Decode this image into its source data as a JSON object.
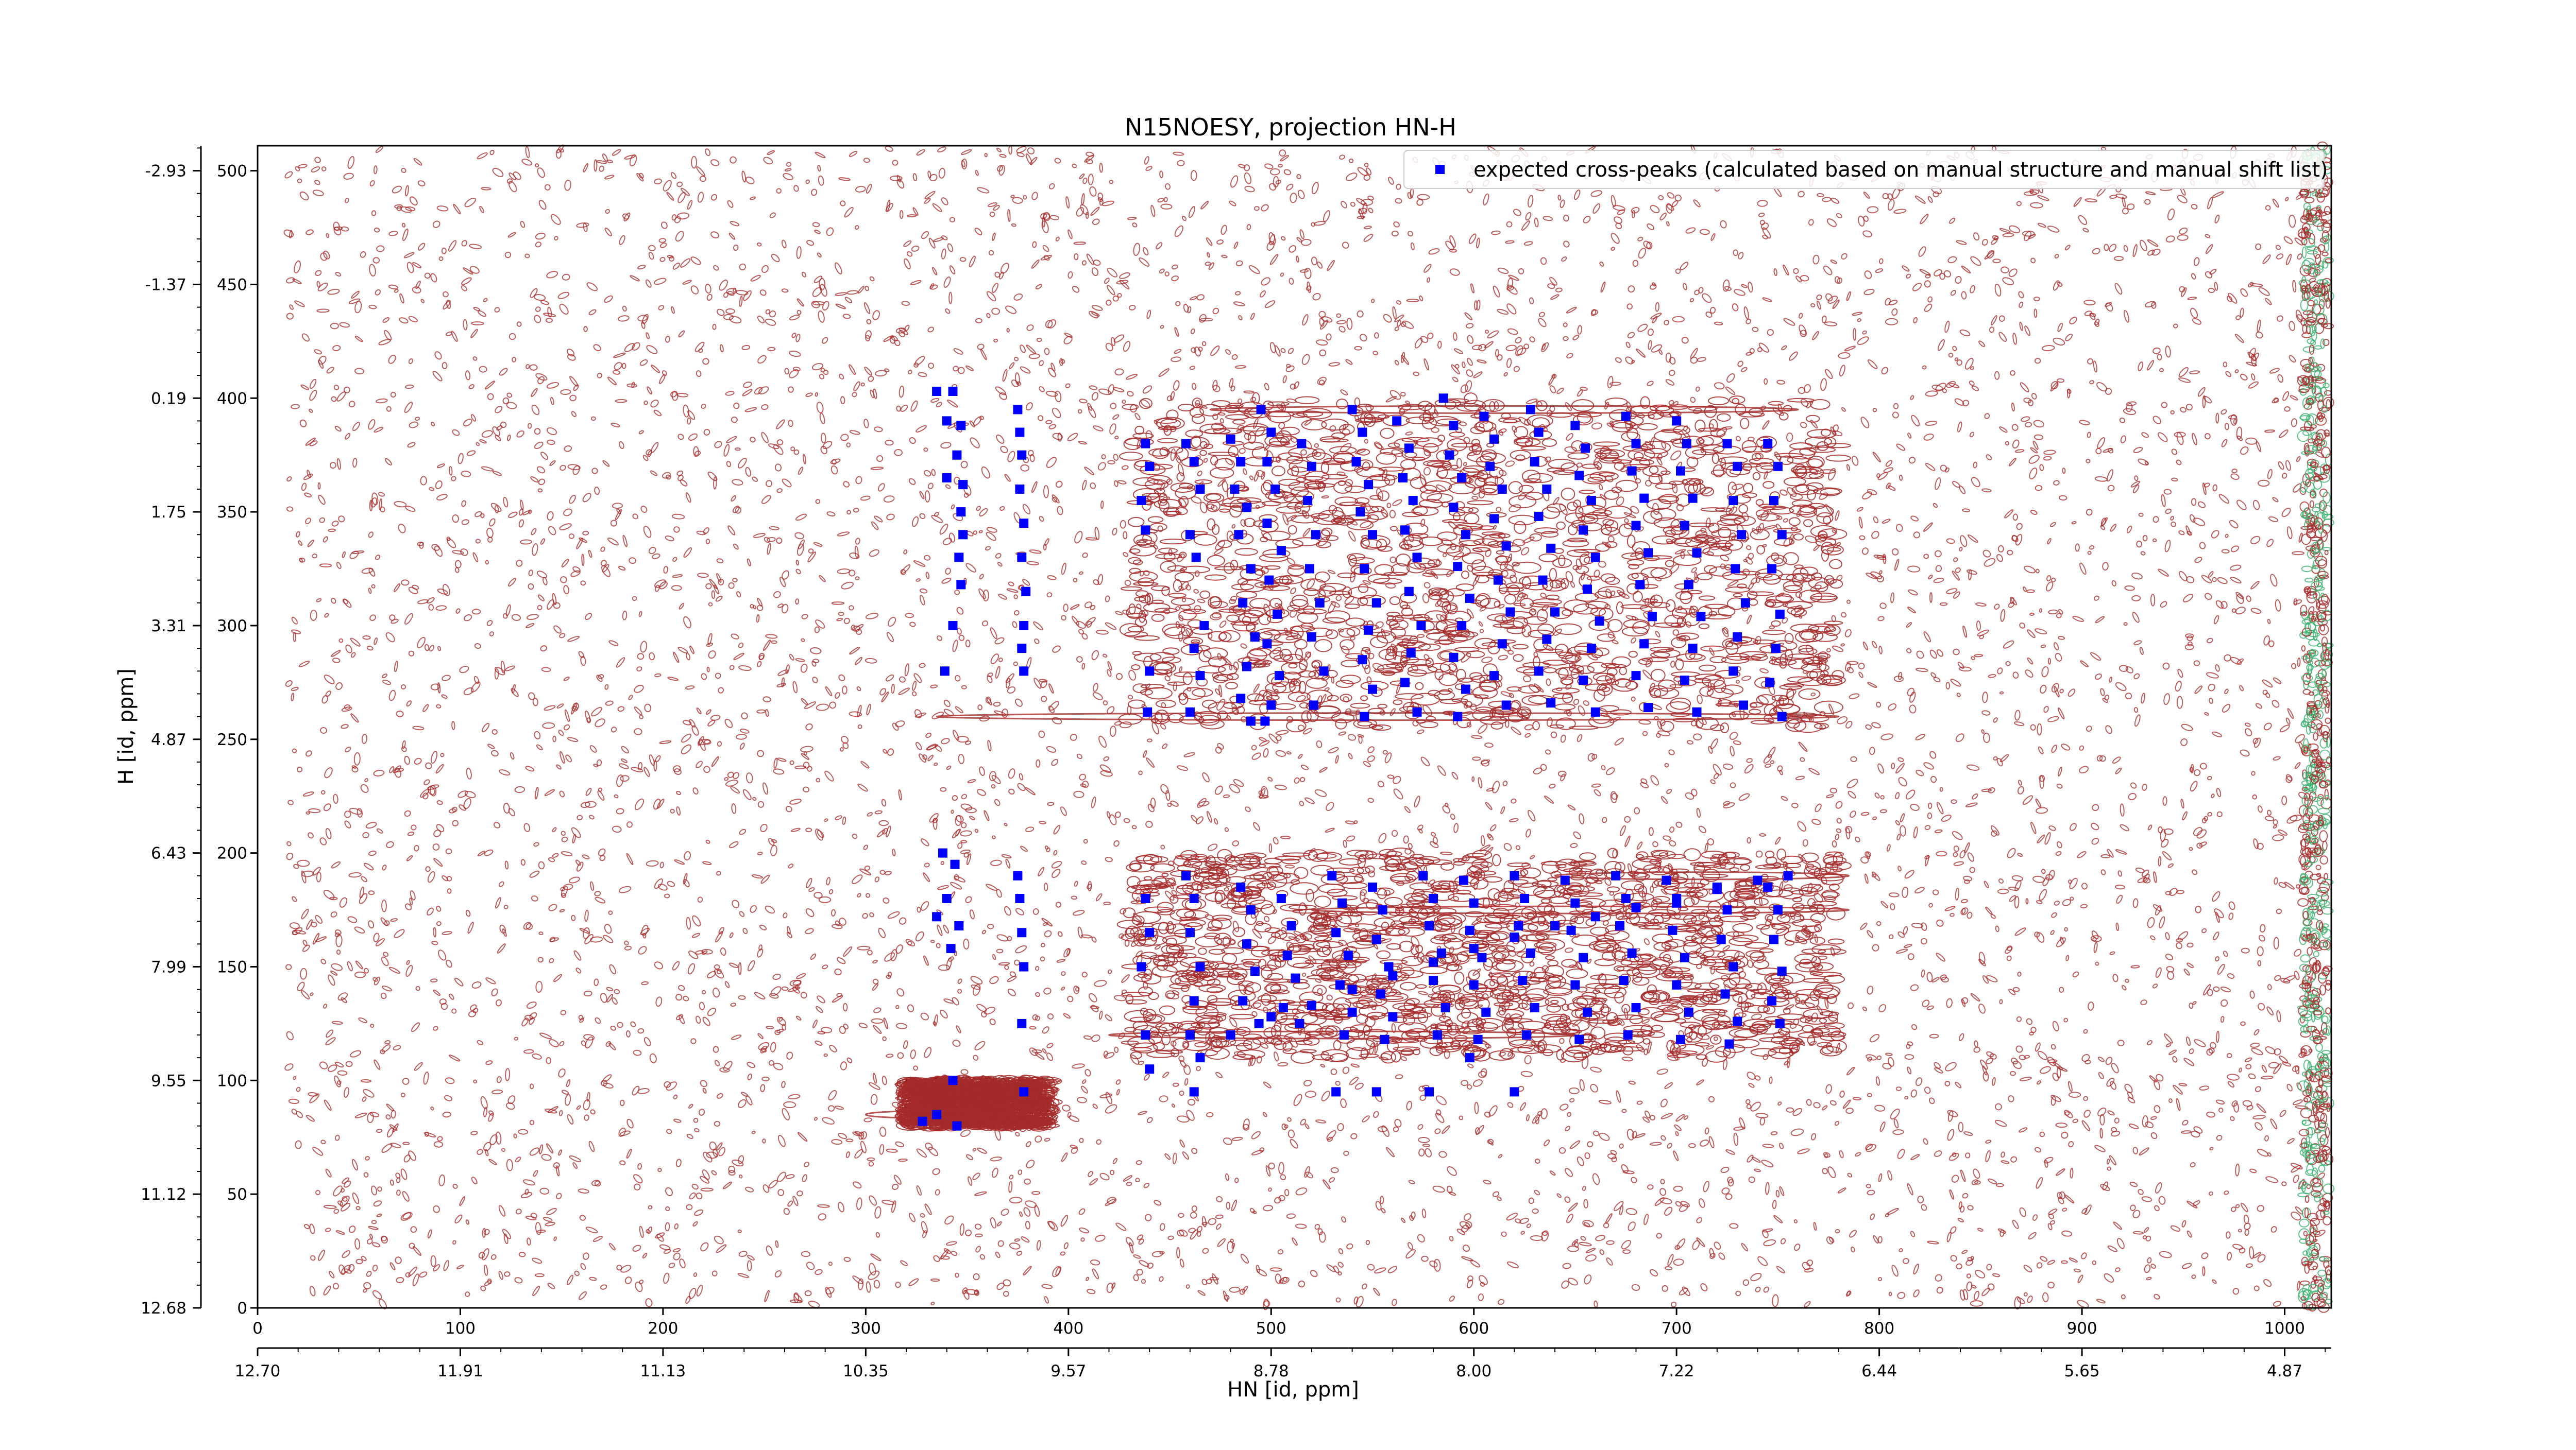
{
  "chart_data": {
    "type": "scatter",
    "title": "N15NOESY, projection HN-H",
    "xlabel": "HN [id, ppm]",
    "ylabel": "H [id, ppm]",
    "xlim": [
      0,
      1023
    ],
    "ylim": [
      0,
      511
    ],
    "x_index_ticks": [
      "0",
      "100",
      "200",
      "300",
      "400",
      "500",
      "600",
      "700",
      "800",
      "900",
      "1000"
    ],
    "y_index_ticks": [
      "0",
      "50",
      "100",
      "150",
      "200",
      "250",
      "300",
      "350",
      "400",
      "450",
      "500"
    ],
    "x_ppm_ticks": [
      "12.70",
      "11.91",
      "11.13",
      "10.35",
      "9.57",
      "8.78",
      "8.00",
      "7.22",
      "6.44",
      "5.65",
      "4.87"
    ],
    "y_ppm_ticks": [
      "12.68",
      "11.12",
      "9.55",
      "7.99",
      "6.43",
      "4.87",
      "3.31",
      "1.75",
      "0.19",
      "-1.37",
      "-2.93"
    ],
    "legend": {
      "label": "expected cross-peaks (calculated based on manual structure and manual shift list)",
      "position": "top-right",
      "marker_color": "#0000ff"
    },
    "colors": {
      "contour": "#a52a2a",
      "contour_negative": "#3cb371",
      "marker": "#0000ff"
    },
    "series": [
      {
        "name": "expected cross-peaks (calculated based on manual structure and manual shift list)",
        "points": [
          [
            335,
            403
          ],
          [
            343,
            403
          ],
          [
            340,
            390
          ],
          [
            347,
            388
          ],
          [
            345,
            375
          ],
          [
            340,
            365
          ],
          [
            348,
            362
          ],
          [
            347,
            350
          ],
          [
            348,
            340
          ],
          [
            346,
            330
          ],
          [
            347,
            318
          ],
          [
            343,
            300
          ],
          [
            339,
            280
          ],
          [
            375,
            395
          ],
          [
            376,
            385
          ],
          [
            377,
            375
          ],
          [
            376,
            360
          ],
          [
            378,
            345
          ],
          [
            377,
            330
          ],
          [
            379,
            315
          ],
          [
            378,
            300
          ],
          [
            377,
            290
          ],
          [
            378,
            280
          ],
          [
            438,
            380
          ],
          [
            440,
            370
          ],
          [
            436,
            355
          ],
          [
            438,
            342
          ],
          [
            440,
            280
          ],
          [
            439,
            262
          ],
          [
            458,
            380
          ],
          [
            462,
            372
          ],
          [
            465,
            360
          ],
          [
            460,
            340
          ],
          [
            463,
            330
          ],
          [
            467,
            300
          ],
          [
            462,
            290
          ],
          [
            465,
            278
          ],
          [
            460,
            262
          ],
          [
            480,
            382
          ],
          [
            485,
            372
          ],
          [
            482,
            360
          ],
          [
            488,
            352
          ],
          [
            484,
            340
          ],
          [
            490,
            325
          ],
          [
            486,
            310
          ],
          [
            492,
            295
          ],
          [
            488,
            282
          ],
          [
            485,
            268
          ],
          [
            490,
            258
          ],
          [
            495,
            395
          ],
          [
            500,
            385
          ],
          [
            498,
            372
          ],
          [
            502,
            360
          ],
          [
            498,
            345
          ],
          [
            505,
            333
          ],
          [
            499,
            320
          ],
          [
            503,
            305
          ],
          [
            498,
            292
          ],
          [
            504,
            278
          ],
          [
            500,
            265
          ],
          [
            497,
            258
          ],
          [
            515,
            380
          ],
          [
            520,
            370
          ],
          [
            518,
            355
          ],
          [
            522,
            340
          ],
          [
            519,
            325
          ],
          [
            524,
            310
          ],
          [
            520,
            295
          ],
          [
            526,
            280
          ],
          [
            521,
            265
          ],
          [
            540,
            395
          ],
          [
            545,
            385
          ],
          [
            542,
            372
          ],
          [
            548,
            362
          ],
          [
            544,
            350
          ],
          [
            550,
            340
          ],
          [
            546,
            325
          ],
          [
            552,
            310
          ],
          [
            548,
            298
          ],
          [
            545,
            285
          ],
          [
            550,
            272
          ],
          [
            546,
            260
          ],
          [
            562,
            390
          ],
          [
            568,
            378
          ],
          [
            565,
            365
          ],
          [
            570,
            355
          ],
          [
            566,
            342
          ],
          [
            572,
            330
          ],
          [
            568,
            315
          ],
          [
            574,
            300
          ],
          [
            569,
            288
          ],
          [
            566,
            275
          ],
          [
            572,
            262
          ],
          [
            585,
            400
          ],
          [
            590,
            388
          ],
          [
            588,
            375
          ],
          [
            594,
            365
          ],
          [
            590,
            352
          ],
          [
            596,
            340
          ],
          [
            592,
            326
          ],
          [
            598,
            312
          ],
          [
            594,
            300
          ],
          [
            590,
            286
          ],
          [
            596,
            272
          ],
          [
            592,
            260
          ],
          [
            605,
            392
          ],
          [
            610,
            382
          ],
          [
            608,
            370
          ],
          [
            614,
            360
          ],
          [
            610,
            347
          ],
          [
            616,
            335
          ],
          [
            612,
            320
          ],
          [
            618,
            306
          ],
          [
            614,
            292
          ],
          [
            610,
            278
          ],
          [
            616,
            265
          ],
          [
            628,
            395
          ],
          [
            632,
            385
          ],
          [
            630,
            372
          ],
          [
            636,
            360
          ],
          [
            632,
            348
          ],
          [
            638,
            334
          ],
          [
            634,
            320
          ],
          [
            640,
            306
          ],
          [
            636,
            294
          ],
          [
            632,
            280
          ],
          [
            638,
            266
          ],
          [
            650,
            388
          ],
          [
            655,
            378
          ],
          [
            652,
            366
          ],
          [
            658,
            355
          ],
          [
            654,
            342
          ],
          [
            660,
            330
          ],
          [
            656,
            316
          ],
          [
            662,
            302
          ],
          [
            658,
            290
          ],
          [
            654,
            276
          ],
          [
            660,
            262
          ],
          [
            675,
            392
          ],
          [
            680,
            380
          ],
          [
            678,
            368
          ],
          [
            684,
            356
          ],
          [
            680,
            344
          ],
          [
            686,
            332
          ],
          [
            682,
            318
          ],
          [
            688,
            304
          ],
          [
            684,
            292
          ],
          [
            680,
            278
          ],
          [
            686,
            264
          ],
          [
            700,
            390
          ],
          [
            705,
            380
          ],
          [
            702,
            368
          ],
          [
            708,
            356
          ],
          [
            704,
            344
          ],
          [
            710,
            332
          ],
          [
            706,
            318
          ],
          [
            712,
            304
          ],
          [
            708,
            290
          ],
          [
            704,
            276
          ],
          [
            710,
            262
          ],
          [
            725,
            380
          ],
          [
            730,
            370
          ],
          [
            728,
            355
          ],
          [
            732,
            340
          ],
          [
            729,
            325
          ],
          [
            734,
            310
          ],
          [
            730,
            295
          ],
          [
            728,
            280
          ],
          [
            733,
            265
          ],
          [
            745,
            380
          ],
          [
            750,
            370
          ],
          [
            748,
            355
          ],
          [
            752,
            340
          ],
          [
            747,
            325
          ],
          [
            751,
            305
          ],
          [
            749,
            290
          ],
          [
            746,
            275
          ],
          [
            752,
            260
          ],
          [
            338,
            200
          ],
          [
            344,
            195
          ],
          [
            340,
            180
          ],
          [
            335,
            172
          ],
          [
            346,
            168
          ],
          [
            342,
            158
          ],
          [
            343,
            100
          ],
          [
            335,
            85
          ],
          [
            345,
            80
          ],
          [
            328,
            82
          ],
          [
            375,
            190
          ],
          [
            376,
            180
          ],
          [
            377,
            165
          ],
          [
            378,
            150
          ],
          [
            377,
            125
          ],
          [
            378,
            95
          ],
          [
            438,
            180
          ],
          [
            440,
            165
          ],
          [
            436,
            150
          ],
          [
            438,
            120
          ],
          [
            440,
            105
          ],
          [
            458,
            190
          ],
          [
            462,
            180
          ],
          [
            460,
            165
          ],
          [
            465,
            150
          ],
          [
            462,
            135
          ],
          [
            460,
            120
          ],
          [
            465,
            110
          ],
          [
            462,
            95
          ],
          [
            485,
            185
          ],
          [
            490,
            175
          ],
          [
            488,
            160
          ],
          [
            492,
            148
          ],
          [
            486,
            135
          ],
          [
            494,
            125
          ],
          [
            505,
            180
          ],
          [
            510,
            168
          ],
          [
            508,
            155
          ],
          [
            512,
            145
          ],
          [
            506,
            132
          ],
          [
            514,
            125
          ],
          [
            530,
            190
          ],
          [
            535,
            178
          ],
          [
            532,
            165
          ],
          [
            538,
            155
          ],
          [
            534,
            142
          ],
          [
            540,
            130
          ],
          [
            536,
            120
          ],
          [
            532,
            95
          ],
          [
            550,
            185
          ],
          [
            555,
            175
          ],
          [
            552,
            162
          ],
          [
            558,
            150
          ],
          [
            554,
            138
          ],
          [
            560,
            128
          ],
          [
            556,
            118
          ],
          [
            552,
            95
          ],
          [
            575,
            190
          ],
          [
            580,
            180
          ],
          [
            578,
            168
          ],
          [
            584,
            156
          ],
          [
            580,
            144
          ],
          [
            586,
            132
          ],
          [
            582,
            120
          ],
          [
            578,
            95
          ],
          [
            595,
            188
          ],
          [
            600,
            178
          ],
          [
            598,
            166
          ],
          [
            604,
            154
          ],
          [
            600,
            142
          ],
          [
            606,
            130
          ],
          [
            602,
            118
          ],
          [
            598,
            110
          ],
          [
            620,
            190
          ],
          [
            625,
            180
          ],
          [
            622,
            168
          ],
          [
            628,
            156
          ],
          [
            624,
            144
          ],
          [
            630,
            132
          ],
          [
            626,
            120
          ],
          [
            620,
            95
          ],
          [
            645,
            188
          ],
          [
            650,
            178
          ],
          [
            648,
            166
          ],
          [
            654,
            154
          ],
          [
            650,
            142
          ],
          [
            656,
            130
          ],
          [
            652,
            118
          ],
          [
            670,
            190
          ],
          [
            675,
            180
          ],
          [
            672,
            168
          ],
          [
            678,
            156
          ],
          [
            674,
            144
          ],
          [
            680,
            132
          ],
          [
            676,
            120
          ],
          [
            695,
            188
          ],
          [
            700,
            178
          ],
          [
            698,
            166
          ],
          [
            704,
            154
          ],
          [
            700,
            142
          ],
          [
            706,
            130
          ],
          [
            702,
            118
          ],
          [
            720,
            185
          ],
          [
            725,
            175
          ],
          [
            722,
            162
          ],
          [
            728,
            150
          ],
          [
            724,
            138
          ],
          [
            730,
            126
          ],
          [
            726,
            116
          ],
          [
            745,
            185
          ],
          [
            750,
            175
          ],
          [
            748,
            162
          ],
          [
            752,
            148
          ],
          [
            747,
            135
          ],
          [
            751,
            125
          ],
          [
            480,
            120
          ],
          [
            500,
            128
          ],
          [
            520,
            133
          ],
          [
            540,
            140
          ],
          [
            560,
            146
          ],
          [
            580,
            152
          ],
          [
            600,
            158
          ],
          [
            620,
            163
          ],
          [
            640,
            168
          ],
          [
            660,
            172
          ],
          [
            680,
            176
          ],
          [
            700,
            180
          ],
          [
            720,
            184
          ],
          [
            740,
            188
          ],
          [
            755,
            190
          ]
        ]
      }
    ]
  }
}
